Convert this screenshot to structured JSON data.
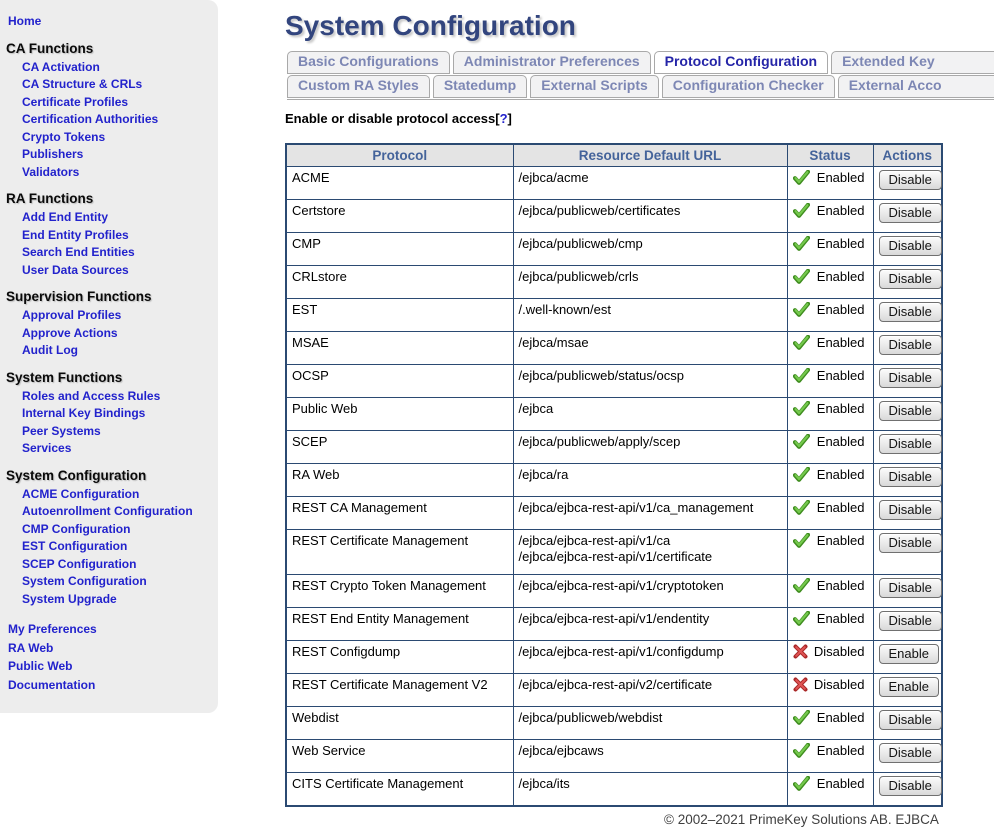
{
  "colors": {
    "link_blue": "#2222cc",
    "title_navy": "#32457e",
    "tab_inactive_text": "#7d87b4",
    "tab_active_text": "#2525a8",
    "table_border": "#2b4a72",
    "header_text": "#44639a",
    "enabled_green": "#3f8c1f",
    "disabled_red": "#a92727"
  },
  "sidebar": {
    "top_links": [
      "Home"
    ],
    "sections": [
      {
        "title": "CA Functions",
        "items": [
          "CA Activation",
          "CA Structure & CRLs",
          "Certificate Profiles",
          "Certification Authorities",
          "Crypto Tokens",
          "Publishers",
          "Validators"
        ]
      },
      {
        "title": "RA Functions",
        "items": [
          "Add End Entity",
          "End Entity Profiles",
          "Search End Entities",
          "User Data Sources"
        ]
      },
      {
        "title": "Supervision Functions",
        "items": [
          "Approval Profiles",
          "Approve Actions",
          "Audit Log"
        ]
      },
      {
        "title": "System Functions",
        "items": [
          "Roles and Access Rules",
          "Internal Key Bindings",
          "Peer Systems",
          "Services"
        ]
      },
      {
        "title": "System Configuration",
        "items": [
          "ACME Configuration",
          "Autoenrollment Configuration",
          "CMP Configuration",
          "EST Configuration",
          "SCEP Configuration",
          "System Configuration",
          "System Upgrade"
        ]
      }
    ],
    "bottom_links": [
      "My Preferences",
      "RA Web",
      "Public Web",
      "Documentation"
    ]
  },
  "header": {
    "title": "System Configuration"
  },
  "tabs": {
    "rows": [
      [
        {
          "label": "Basic Configurations",
          "active": false,
          "clipped": false
        },
        {
          "label": "Administrator Preferences",
          "active": false,
          "clipped": false
        },
        {
          "label": "Protocol Configuration",
          "active": true,
          "clipped": false
        },
        {
          "label": "Extended Key",
          "active": false,
          "clipped": true
        }
      ],
      [
        {
          "label": "Custom RA Styles",
          "active": false,
          "clipped": false
        },
        {
          "label": "Statedump",
          "active": false,
          "clipped": false
        },
        {
          "label": "External Scripts",
          "active": false,
          "clipped": false
        },
        {
          "label": "Configuration Checker",
          "active": false,
          "clipped": false
        },
        {
          "label": "External Acco",
          "active": false,
          "clipped": true
        }
      ]
    ]
  },
  "intro": {
    "prefix": "Enable or disable protocol access[",
    "help": "?",
    "suffix": "]"
  },
  "table": {
    "headers": [
      "Protocol",
      "Resource Default URL",
      "Status",
      "Actions"
    ],
    "status_icons": {
      "Enabled": "green-check-icon",
      "Disabled": "red-cross-icon"
    },
    "rows": [
      {
        "protocol": "ACME",
        "urls": [
          "/ejbca/acme"
        ],
        "status": "Enabled",
        "action": "Disable"
      },
      {
        "protocol": "Certstore",
        "urls": [
          "/ejbca/publicweb/certificates"
        ],
        "status": "Enabled",
        "action": "Disable"
      },
      {
        "protocol": "CMP",
        "urls": [
          "/ejbca/publicweb/cmp"
        ],
        "status": "Enabled",
        "action": "Disable"
      },
      {
        "protocol": "CRLstore",
        "urls": [
          "/ejbca/publicweb/crls"
        ],
        "status": "Enabled",
        "action": "Disable"
      },
      {
        "protocol": "EST",
        "urls": [
          "/.well-known/est"
        ],
        "status": "Enabled",
        "action": "Disable"
      },
      {
        "protocol": "MSAE",
        "urls": [
          "/ejbca/msae"
        ],
        "status": "Enabled",
        "action": "Disable"
      },
      {
        "protocol": "OCSP",
        "urls": [
          "/ejbca/publicweb/status/ocsp"
        ],
        "status": "Enabled",
        "action": "Disable"
      },
      {
        "protocol": "Public Web",
        "urls": [
          "/ejbca"
        ],
        "status": "Enabled",
        "action": "Disable"
      },
      {
        "protocol": "SCEP",
        "urls": [
          "/ejbca/publicweb/apply/scep"
        ],
        "status": "Enabled",
        "action": "Disable"
      },
      {
        "protocol": "RA Web",
        "urls": [
          "/ejbca/ra"
        ],
        "status": "Enabled",
        "action": "Disable"
      },
      {
        "protocol": "REST CA Management",
        "urls": [
          "/ejbca/ejbca-rest-api/v1/ca_management"
        ],
        "status": "Enabled",
        "action": "Disable"
      },
      {
        "protocol": "REST Certificate Management",
        "urls": [
          "/ejbca/ejbca-rest-api/v1/ca",
          "/ejbca/ejbca-rest-api/v1/certificate"
        ],
        "status": "Enabled",
        "action": "Disable"
      },
      {
        "protocol": "REST Crypto Token Management",
        "urls": [
          "/ejbca/ejbca-rest-api/v1/cryptotoken"
        ],
        "status": "Enabled",
        "action": "Disable"
      },
      {
        "protocol": "REST End Entity Management",
        "urls": [
          "/ejbca/ejbca-rest-api/v1/endentity"
        ],
        "status": "Enabled",
        "action": "Disable"
      },
      {
        "protocol": "REST Configdump",
        "urls": [
          "/ejbca/ejbca-rest-api/v1/configdump"
        ],
        "status": "Disabled",
        "action": "Enable"
      },
      {
        "protocol": "REST Certificate Management V2",
        "urls": [
          "/ejbca/ejbca-rest-api/v2/certificate"
        ],
        "status": "Disabled",
        "action": "Enable"
      },
      {
        "protocol": "Webdist",
        "urls": [
          "/ejbca/publicweb/webdist"
        ],
        "status": "Enabled",
        "action": "Disable"
      },
      {
        "protocol": "Web Service",
        "urls": [
          "/ejbca/ejbcaws"
        ],
        "status": "Enabled",
        "action": "Disable"
      },
      {
        "protocol": "CITS Certificate Management",
        "urls": [
          "/ejbca/its"
        ],
        "status": "Enabled",
        "action": "Disable"
      }
    ]
  },
  "footer": {
    "text": "© 2002–2021 PrimeKey Solutions AB. EJBCA"
  }
}
